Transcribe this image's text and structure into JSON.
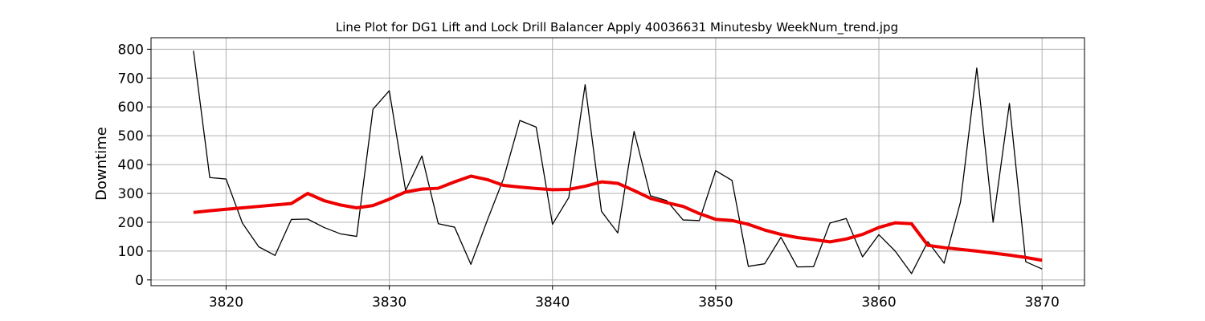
{
  "chart_data": {
    "type": "line",
    "title": "Line Plot for DG1 Lift and Lock Drill Balancer Apply 40036631 Minutesby WeekNum_trend.jpg",
    "xlabel": "",
    "ylabel": "Downtime",
    "xlim": [
      3815.4,
      3872.6
    ],
    "ylim": [
      -20,
      840
    ],
    "xticks": [
      3820,
      3830,
      3840,
      3850,
      3860,
      3870
    ],
    "yticks": [
      0,
      100,
      200,
      300,
      400,
      500,
      600,
      700,
      800
    ],
    "grid": true,
    "x": [
      3818,
      3819,
      3820,
      3821,
      3822,
      3823,
      3824,
      3825,
      3826,
      3827,
      3828,
      3829,
      3830,
      3831,
      3832,
      3833,
      3834,
      3835,
      3836,
      3837,
      3838,
      3839,
      3840,
      3841,
      3842,
      3843,
      3844,
      3845,
      3846,
      3847,
      3848,
      3849,
      3850,
      3851,
      3852,
      3853,
      3854,
      3855,
      3856,
      3857,
      3858,
      3859,
      3860,
      3861,
      3862,
      3863,
      3864,
      3865,
      3866,
      3867,
      3868,
      3869,
      3870
    ],
    "series": [
      {
        "color": "#000000",
        "values": [
          795,
          355,
          350,
          197,
          115,
          85,
          210,
          211,
          182,
          160,
          151,
          592,
          656,
          310,
          430,
          195,
          183,
          54,
          206,
          351,
          553,
          530,
          193,
          286,
          677,
          238,
          163,
          515,
          292,
          275,
          208,
          206,
          379,
          345,
          47,
          56,
          148,
          45,
          46,
          197,
          213,
          80,
          157,
          100,
          22,
          133,
          58,
          270,
          735,
          200,
          612,
          63,
          38
        ]
      },
      {
        "color": "#ee0000",
        "values": [
          234,
          240,
          245,
          250,
          255,
          260,
          265,
          300,
          275,
          260,
          250,
          258,
          280,
          305,
          315,
          318,
          340,
          360,
          348,
          328,
          322,
          317,
          313,
          314,
          325,
          340,
          335,
          310,
          283,
          268,
          255,
          230,
          210,
          206,
          193,
          173,
          158,
          147,
          140,
          132,
          142,
          158,
          182,
          198,
          195,
          120,
          112,
          106,
          100,
          93,
          86,
          78,
          68
        ]
      }
    ]
  }
}
